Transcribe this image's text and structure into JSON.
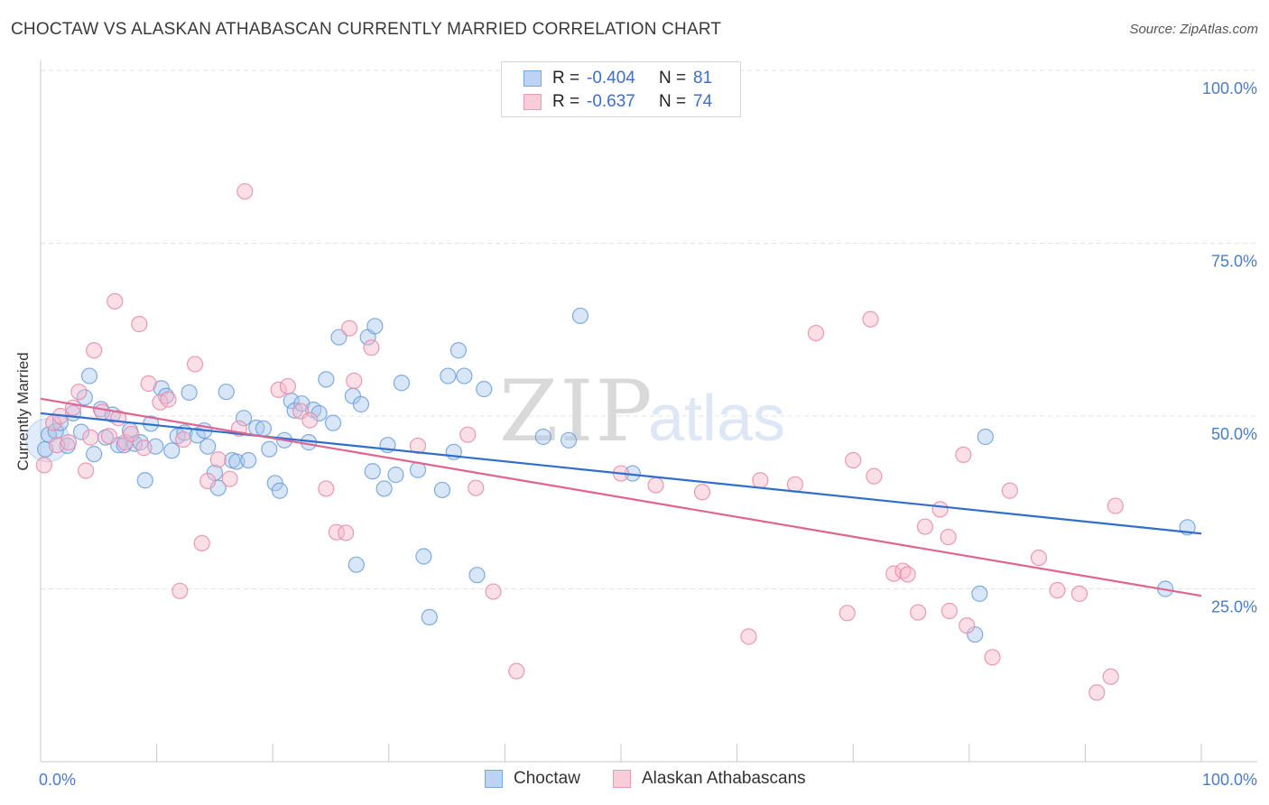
{
  "header": {
    "title": "CHOCTAW VS ALASKAN ATHABASCAN CURRENTLY MARRIED CORRELATION CHART",
    "source": "Source: ZipAtlas.com"
  },
  "watermark": {
    "zip": "ZIP",
    "atlas": "atlas"
  },
  "legend": {
    "rows": [
      {
        "r_label": "R =",
        "r_value": "-0.404",
        "n_label": "N =",
        "n_value": "81",
        "color": "#a9c8f0"
      },
      {
        "r_label": "R =",
        "r_value": "-0.637",
        "n_label": "N =",
        "n_value": "74",
        "color": "#f6b8ca"
      }
    ]
  },
  "bottom_legend": {
    "items": [
      "Choctaw",
      "Alaskan Athabascans"
    ]
  },
  "colors": {
    "choctaw_fill": "#a9c8f0",
    "choctaw_stroke": "#6b9fdc",
    "choctaw_line": "#2f6fcc",
    "alaskan_fill": "#f6b8ca",
    "alaskan_stroke": "#e88aa6",
    "alaskan_line": "#e0648f",
    "tick_text": "#4a7cc9"
  },
  "chart_data": {
    "type": "scatter",
    "title": "CHOCTAW VS ALASKAN ATHABASCAN CURRENTLY MARRIED CORRELATION CHART",
    "xlabel": "",
    "ylabel": "Currently Married",
    "xlim": [
      0,
      100
    ],
    "ylim": [
      0,
      100
    ],
    "x_ticks_labels": [
      "0.0%",
      "100.0%"
    ],
    "y_ticks": [
      25,
      50,
      75,
      100
    ],
    "y_ticks_labels": [
      "25.0%",
      "50.0%",
      "75.0%",
      "100.0%"
    ],
    "grid": true,
    "legend_position": "top-center",
    "series": [
      {
        "name": "Choctaw",
        "r": -0.404,
        "n": 81,
        "trend": {
          "x": [
            0,
            100
          ],
          "y": [
            50.4,
            33.0
          ]
        },
        "points": [
          [
            0.4,
            45.2
          ],
          [
            0.7,
            47.3
          ],
          [
            1.3,
            47.8
          ],
          [
            1.7,
            49.0
          ],
          [
            2.3,
            45.7
          ],
          [
            2.8,
            50.4
          ],
          [
            3.5,
            47.7
          ],
          [
            3.8,
            52.7
          ],
          [
            4.2,
            55.8
          ],
          [
            4.6,
            44.5
          ],
          [
            5.2,
            51.0
          ],
          [
            5.6,
            46.9
          ],
          [
            6.2,
            50.2
          ],
          [
            6.7,
            45.8
          ],
          [
            7.2,
            45.8
          ],
          [
            7.7,
            47.9
          ],
          [
            8.1,
            46.0
          ],
          [
            8.6,
            46.2
          ],
          [
            9.0,
            40.7
          ],
          [
            9.5,
            48.9
          ],
          [
            9.9,
            45.6
          ],
          [
            10.4,
            54.0
          ],
          [
            10.8,
            52.9
          ],
          [
            11.3,
            45.0
          ],
          [
            11.8,
            47.1
          ],
          [
            12.4,
            47.6
          ],
          [
            12.8,
            53.4
          ],
          [
            13.5,
            47.2
          ],
          [
            14.1,
            47.9
          ],
          [
            14.4,
            45.6
          ],
          [
            15.0,
            41.8
          ],
          [
            15.3,
            39.6
          ],
          [
            16.0,
            53.5
          ],
          [
            16.5,
            43.6
          ],
          [
            16.9,
            43.4
          ],
          [
            17.5,
            49.7
          ],
          [
            17.9,
            43.6
          ],
          [
            18.6,
            48.3
          ],
          [
            19.2,
            48.2
          ],
          [
            19.7,
            45.2
          ],
          [
            20.2,
            40.3
          ],
          [
            20.6,
            39.2
          ],
          [
            21.0,
            46.5
          ],
          [
            21.6,
            52.2
          ],
          [
            21.9,
            50.8
          ],
          [
            22.5,
            51.8
          ],
          [
            23.1,
            46.2
          ],
          [
            23.5,
            50.9
          ],
          [
            24.0,
            50.4
          ],
          [
            24.6,
            55.3
          ],
          [
            25.2,
            49.0
          ],
          [
            25.7,
            61.4
          ],
          [
            26.9,
            52.9
          ],
          [
            27.2,
            28.5
          ],
          [
            27.6,
            51.7
          ],
          [
            28.2,
            61.4
          ],
          [
            28.6,
            42.0
          ],
          [
            28.8,
            63.0
          ],
          [
            29.6,
            39.5
          ],
          [
            29.9,
            45.8
          ],
          [
            30.6,
            41.5
          ],
          [
            31.1,
            54.8
          ],
          [
            32.5,
            42.2
          ],
          [
            33.0,
            29.7
          ],
          [
            33.5,
            20.9
          ],
          [
            34.6,
            39.3
          ],
          [
            35.1,
            55.8
          ],
          [
            35.6,
            44.8
          ],
          [
            36.0,
            59.5
          ],
          [
            36.5,
            55.8
          ],
          [
            37.6,
            27.0
          ],
          [
            38.2,
            53.9
          ],
          [
            43.3,
            47.0
          ],
          [
            45.5,
            46.5
          ],
          [
            46.5,
            64.5
          ],
          [
            51.0,
            41.7
          ],
          [
            80.5,
            18.4
          ],
          [
            80.9,
            24.3
          ],
          [
            81.4,
            47.0
          ],
          [
            96.9,
            25.0
          ],
          [
            98.8,
            33.9
          ]
        ]
      },
      {
        "name": "Alaskan Athabascans",
        "r": -0.637,
        "n": 74,
        "trend": {
          "x": [
            0,
            100
          ],
          "y": [
            52.5,
            24.0
          ]
        },
        "points": [
          [
            0.3,
            42.9
          ],
          [
            1.1,
            49.0
          ],
          [
            1.4,
            45.8
          ],
          [
            1.7,
            50.0
          ],
          [
            2.4,
            46.2
          ],
          [
            2.8,
            51.2
          ],
          [
            3.3,
            53.5
          ],
          [
            3.9,
            42.1
          ],
          [
            4.3,
            46.9
          ],
          [
            4.6,
            59.5
          ],
          [
            5.3,
            50.6
          ],
          [
            5.9,
            47.1
          ],
          [
            6.4,
            66.6
          ],
          [
            6.7,
            49.7
          ],
          [
            7.3,
            46.2
          ],
          [
            7.8,
            47.4
          ],
          [
            8.5,
            63.3
          ],
          [
            8.9,
            45.4
          ],
          [
            9.3,
            54.7
          ],
          [
            10.3,
            52.0
          ],
          [
            11.0,
            52.4
          ],
          [
            12.0,
            24.7
          ],
          [
            12.3,
            46.6
          ],
          [
            13.3,
            57.5
          ],
          [
            13.9,
            31.6
          ],
          [
            14.4,
            40.6
          ],
          [
            15.3,
            43.7
          ],
          [
            16.3,
            40.9
          ],
          [
            17.1,
            48.2
          ],
          [
            17.6,
            82.5
          ],
          [
            20.5,
            53.8
          ],
          [
            21.3,
            54.3
          ],
          [
            22.4,
            50.7
          ],
          [
            23.2,
            49.4
          ],
          [
            24.6,
            39.5
          ],
          [
            25.5,
            33.2
          ],
          [
            26.3,
            33.1
          ],
          [
            26.6,
            62.7
          ],
          [
            27.0,
            55.1
          ],
          [
            28.5,
            59.9
          ],
          [
            32.5,
            45.7
          ],
          [
            36.8,
            47.3
          ],
          [
            37.5,
            39.6
          ],
          [
            39.0,
            24.6
          ],
          [
            41.0,
            13.1
          ],
          [
            50.0,
            41.7
          ],
          [
            53.0,
            40.0
          ],
          [
            57.0,
            39.0
          ],
          [
            61.0,
            18.1
          ],
          [
            62.0,
            40.7
          ],
          [
            65.0,
            40.1
          ],
          [
            66.8,
            62.0
          ],
          [
            69.5,
            21.5
          ],
          [
            70.0,
            43.6
          ],
          [
            71.5,
            64.0
          ],
          [
            71.8,
            41.3
          ],
          [
            73.5,
            27.2
          ],
          [
            74.3,
            27.6
          ],
          [
            74.7,
            27.1
          ],
          [
            75.6,
            21.6
          ],
          [
            76.2,
            34.0
          ],
          [
            77.5,
            36.5
          ],
          [
            78.2,
            32.5
          ],
          [
            78.3,
            21.8
          ],
          [
            79.5,
            44.4
          ],
          [
            79.8,
            19.7
          ],
          [
            82.0,
            15.1
          ],
          [
            83.5,
            39.2
          ],
          [
            86.0,
            29.5
          ],
          [
            87.6,
            24.8
          ],
          [
            89.5,
            24.3
          ],
          [
            91.0,
            10.0
          ],
          [
            92.2,
            12.3
          ],
          [
            92.6,
            37.0
          ]
        ]
      }
    ]
  }
}
